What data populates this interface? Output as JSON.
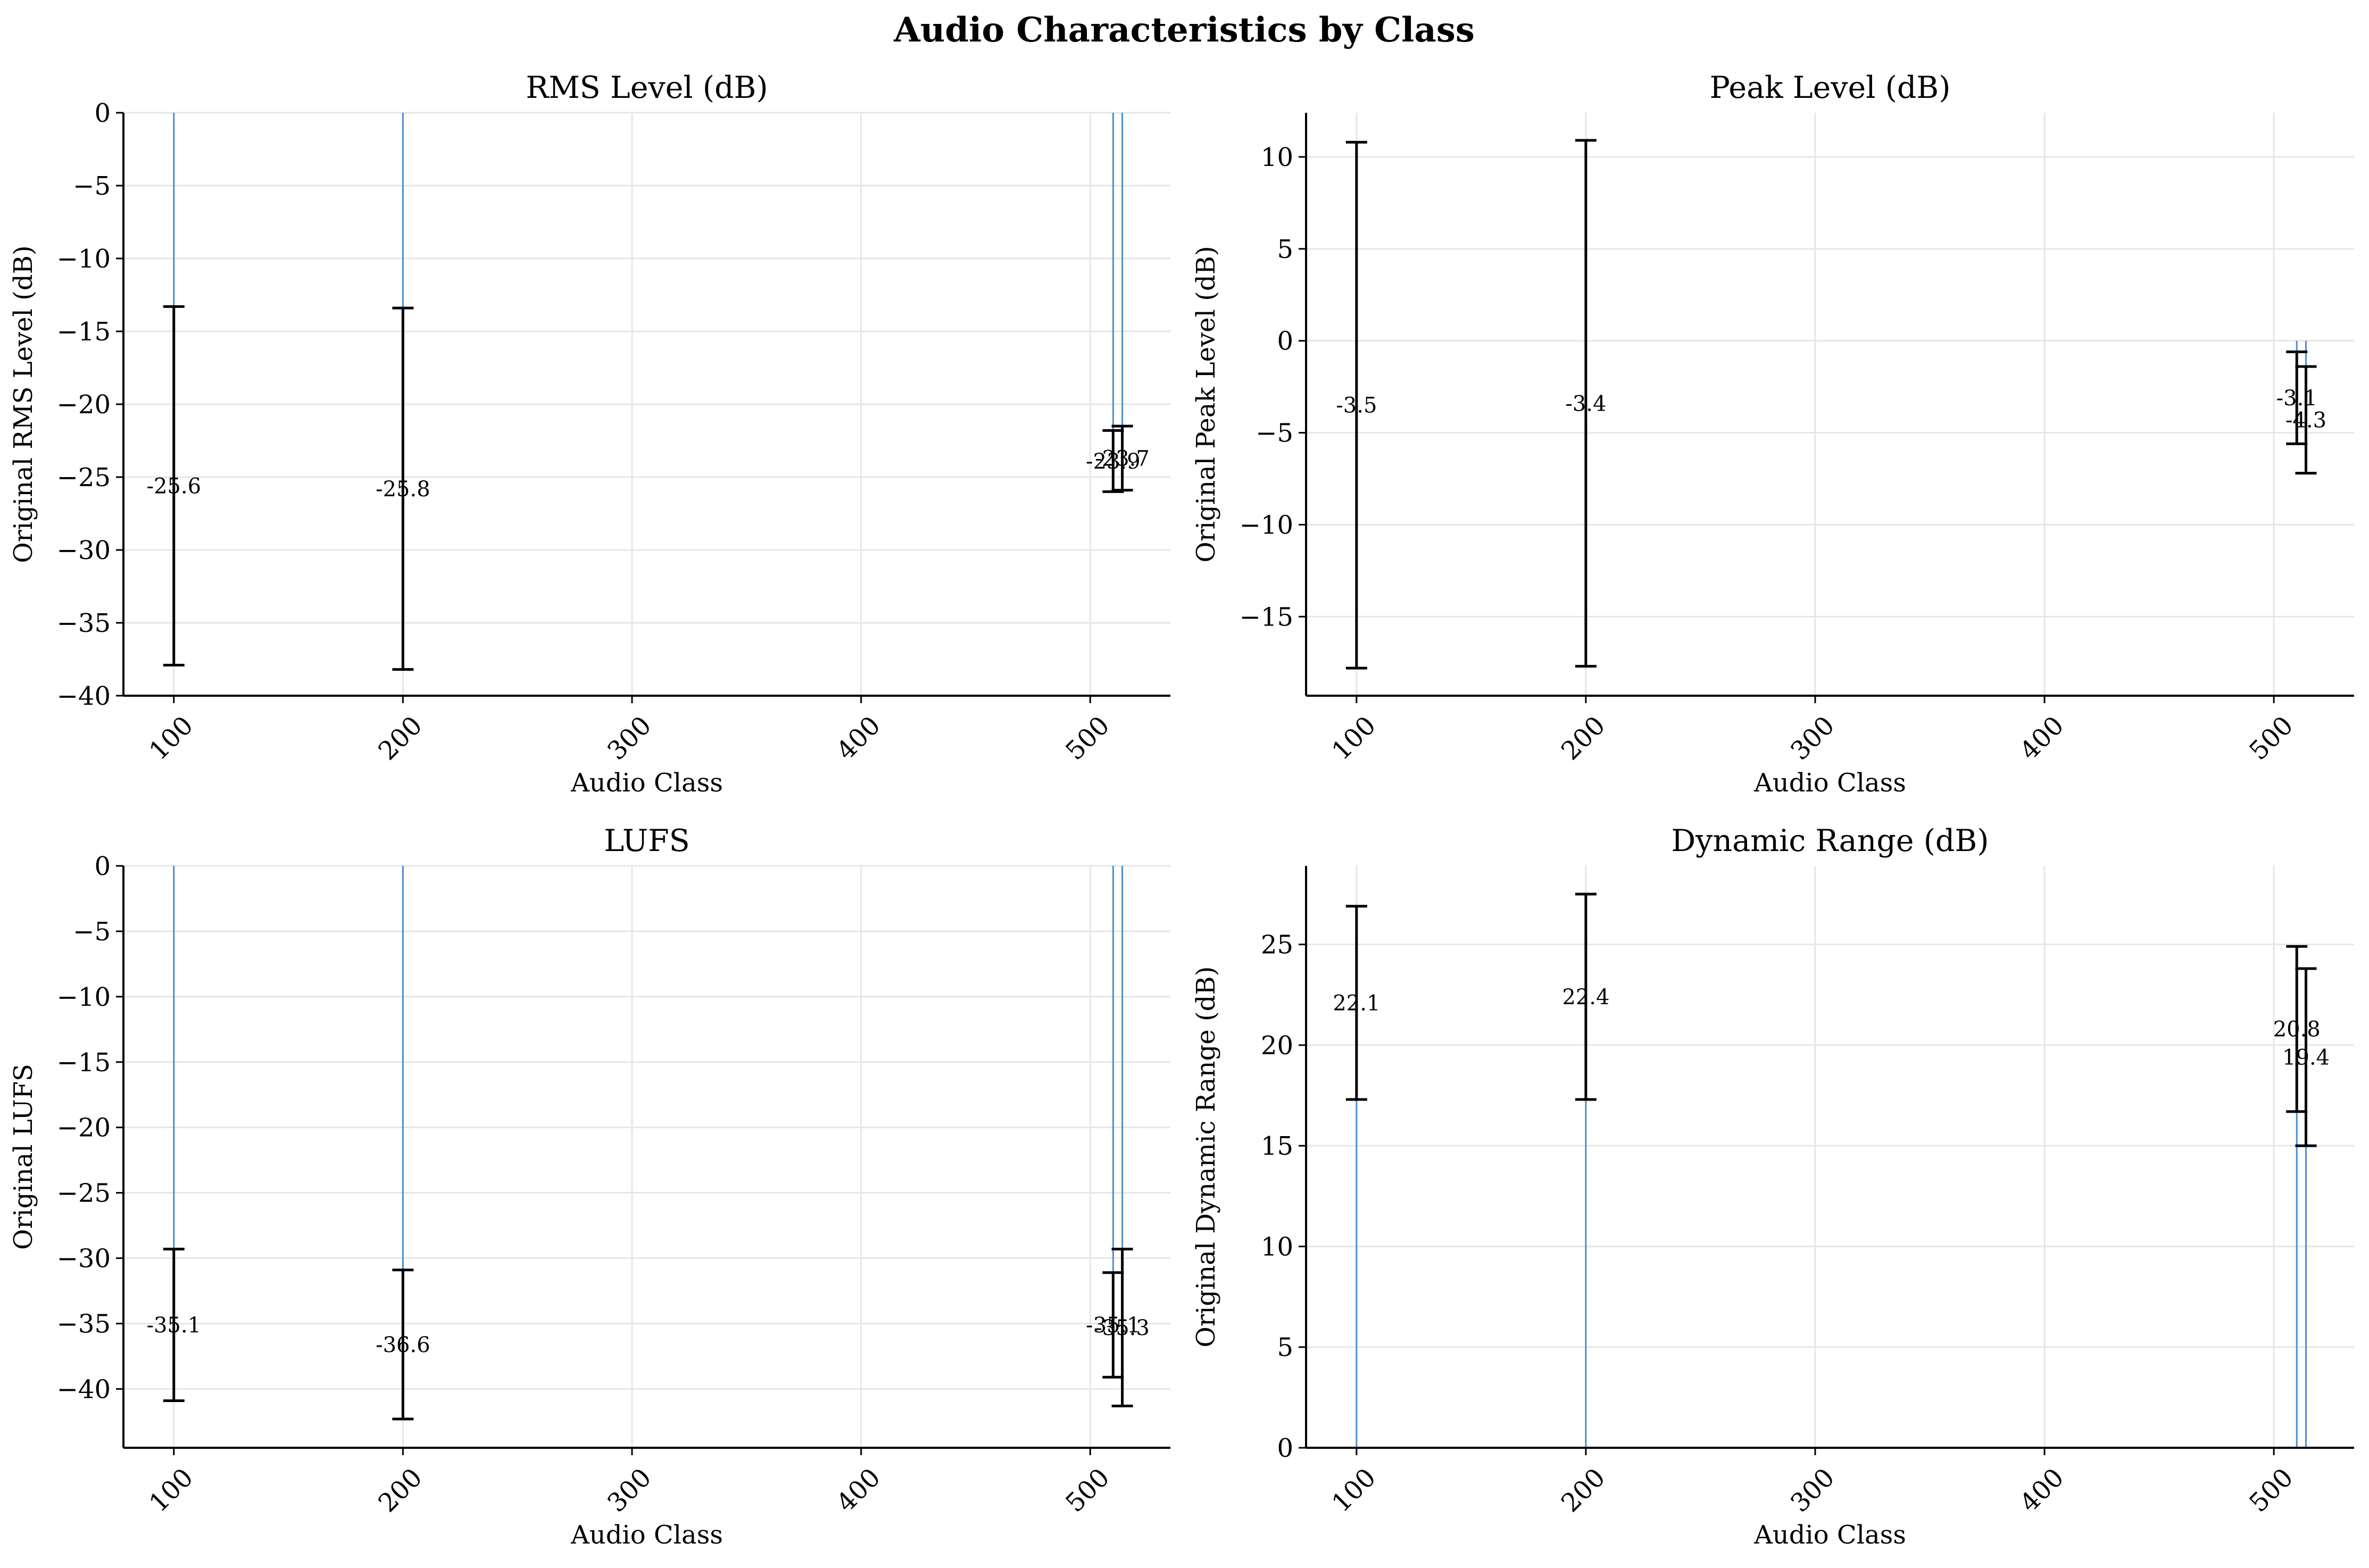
{
  "figure": {
    "title": "Audio Characteristics by Class"
  },
  "colors": {
    "bar": "#4c8fcf",
    "errorbar": "#000000",
    "grid": "#e6e6e6"
  },
  "chart_data": [
    {
      "type": "bar",
      "title": "RMS Level (dB)",
      "xlabel": "Audio Class",
      "ylabel": "Original RMS Level (dB)",
      "x": [
        100,
        200,
        510,
        514
      ],
      "values": [
        -25.6,
        -25.8,
        -23.9,
        -23.7
      ],
      "errors": [
        12.3,
        12.4,
        2.1,
        2.2
      ],
      "data_labels": [
        "-25.6",
        "-25.8",
        "-23.9",
        "-23.7"
      ],
      "xlim": [
        78,
        535
      ],
      "ylim": [
        -40,
        0
      ],
      "xticks": [
        100,
        200,
        300,
        400,
        500
      ],
      "yticks": [
        0,
        -5,
        -10,
        -15,
        -20,
        -25,
        -30,
        -35,
        -40
      ],
      "ytick_labels": [
        "0",
        "−5",
        "−10",
        "−15",
        "−20",
        "−25",
        "−30",
        "−35",
        "−40"
      ],
      "grid": true
    },
    {
      "type": "bar",
      "title": "Peak Level (dB)",
      "xlabel": "Audio Class",
      "ylabel": "Original Peak Level (dB)",
      "x": [
        100,
        200,
        510,
        514
      ],
      "values": [
        -3.5,
        -3.4,
        -3.1,
        -4.3
      ],
      "errors": [
        14.3,
        14.3,
        2.5,
        2.9
      ],
      "data_labels": [
        "-3.5",
        "-3.4",
        "-3.1",
        "-4.3"
      ],
      "xlim": [
        78,
        535
      ],
      "ylim": [
        -19.3,
        12.4
      ],
      "xticks": [
        100,
        200,
        300,
        400,
        500
      ],
      "yticks": [
        10,
        5,
        0,
        -5,
        -10,
        -15
      ],
      "ytick_labels": [
        "10",
        "5",
        "0",
        "−5",
        "−10",
        "−15"
      ],
      "grid": true
    },
    {
      "type": "bar",
      "title": "LUFS",
      "xlabel": "Audio Class",
      "ylabel": "Original LUFS",
      "x": [
        100,
        200,
        510,
        514
      ],
      "values": [
        -35.1,
        -36.6,
        -35.1,
        -35.3
      ],
      "errors": [
        5.8,
        5.7,
        4.0,
        6.0
      ],
      "data_labels": [
        "-35.1",
        "-36.6",
        "-35.1",
        "-35.3"
      ],
      "xlim": [
        78,
        535
      ],
      "ylim": [
        -44.5,
        0
      ],
      "xticks": [
        100,
        200,
        300,
        400,
        500
      ],
      "yticks": [
        0,
        -5,
        -10,
        -15,
        -20,
        -25,
        -30,
        -35,
        -40
      ],
      "ytick_labels": [
        "0",
        "−5",
        "−10",
        "−15",
        "−20",
        "−25",
        "−30",
        "−35",
        "−40"
      ],
      "grid": true
    },
    {
      "type": "bar",
      "title": "Dynamic Range (dB)",
      "xlabel": "Audio Class",
      "ylabel": "Original Dynamic Range (dB)",
      "x": [
        100,
        200,
        510,
        514
      ],
      "values": [
        22.1,
        22.4,
        20.8,
        19.4
      ],
      "errors": [
        4.8,
        5.1,
        4.1,
        4.4
      ],
      "data_labels": [
        "22.1",
        "22.4",
        "20.8",
        "19.4"
      ],
      "xlim": [
        78,
        535
      ],
      "ylim": [
        0,
        28.9
      ],
      "xticks": [
        100,
        200,
        300,
        400,
        500
      ],
      "yticks": [
        0,
        5,
        10,
        15,
        20,
        25
      ],
      "ytick_labels": [
        "0",
        "5",
        "10",
        "15",
        "20",
        "25"
      ],
      "grid": true
    }
  ]
}
